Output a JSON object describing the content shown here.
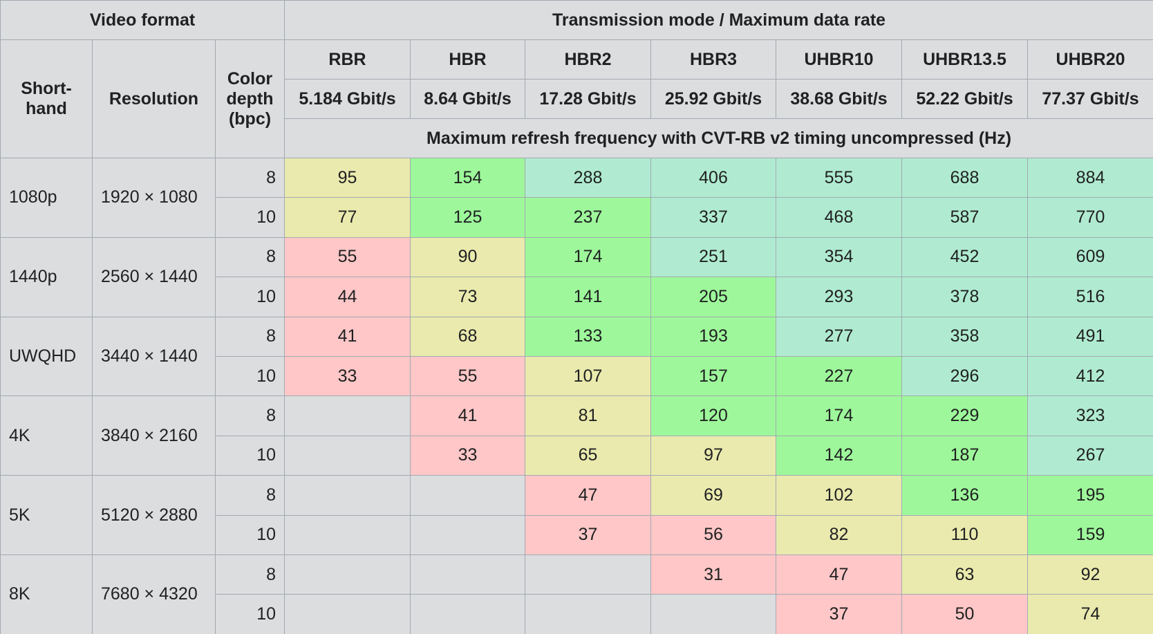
{
  "header": {
    "group_format": "Video format",
    "group_mode": "Transmission mode / Maximum data rate",
    "shorthand": "Short-hand",
    "resolution": "Resolution",
    "depth": "Color depth (bpc)",
    "subtitle": "Maximum refresh frequency with CVT-RB v2 timing uncompressed (Hz)",
    "modes": [
      {
        "name": "RBR",
        "rate": "5.184 Gbit/s"
      },
      {
        "name": "HBR",
        "rate": "8.64 Gbit/s"
      },
      {
        "name": "HBR2",
        "rate": "17.28 Gbit/s"
      },
      {
        "name": "HBR3",
        "rate": "25.92 Gbit/s"
      },
      {
        "name": "UHBR10",
        "rate": "38.68 Gbit/s"
      },
      {
        "name": "UHBR13.5",
        "rate": "52.22 Gbit/s"
      },
      {
        "name": "UHBR20",
        "rate": "77.37 Gbit/s"
      }
    ]
  },
  "formats": [
    {
      "shorthand": "1080p",
      "resolution": "1920 × 1080",
      "rows": [
        {
          "depth": 8,
          "values": [
            95,
            154,
            288,
            406,
            555,
            688,
            884
          ],
          "colors": [
            "#eaeaae",
            "#9ef89b",
            "#b0ebd1",
            "#b0ebd1",
            "#b0ebd1",
            "#b0ebd1",
            "#b0ebd1"
          ]
        },
        {
          "depth": 10,
          "values": [
            77,
            125,
            237,
            337,
            468,
            587,
            770
          ],
          "colors": [
            "#eaeaae",
            "#9ef89b",
            "#9ef89b",
            "#b0ebd1",
            "#b0ebd1",
            "#b0ebd1",
            "#b0ebd1"
          ]
        }
      ]
    },
    {
      "shorthand": "1440p",
      "resolution": "2560 × 1440",
      "rows": [
        {
          "depth": 8,
          "values": [
            55,
            90,
            174,
            251,
            354,
            452,
            609
          ],
          "colors": [
            "#ffc7c7",
            "#eaeaae",
            "#9ef89b",
            "#b0ebd1",
            "#b0ebd1",
            "#b0ebd1",
            "#b0ebd1"
          ]
        },
        {
          "depth": 10,
          "values": [
            44,
            73,
            141,
            205,
            293,
            378,
            516
          ],
          "colors": [
            "#ffc7c7",
            "#eaeaae",
            "#9ef89b",
            "#9ef89b",
            "#b0ebd1",
            "#b0ebd1",
            "#b0ebd1"
          ]
        }
      ]
    },
    {
      "shorthand": "UWQHD",
      "resolution": "3440 × 1440",
      "rows": [
        {
          "depth": 8,
          "values": [
            41,
            68,
            133,
            193,
            277,
            358,
            491
          ],
          "colors": [
            "#ffc7c7",
            "#eaeaae",
            "#9ef89b",
            "#9ef89b",
            "#b0ebd1",
            "#b0ebd1",
            "#b0ebd1"
          ]
        },
        {
          "depth": 10,
          "values": [
            33,
            55,
            107,
            157,
            227,
            296,
            412
          ],
          "colors": [
            "#ffc7c7",
            "#ffc7c7",
            "#eaeaae",
            "#9ef89b",
            "#9ef89b",
            "#b0ebd1",
            "#b0ebd1"
          ]
        }
      ]
    },
    {
      "shorthand": "4K",
      "resolution": "3840 × 2160",
      "rows": [
        {
          "depth": 8,
          "values": [
            null,
            41,
            81,
            120,
            174,
            229,
            323
          ],
          "colors": [
            null,
            "#ffc7c7",
            "#eaeaae",
            "#9ef89b",
            "#9ef89b",
            "#9ef89b",
            "#b0ebd1"
          ]
        },
        {
          "depth": 10,
          "values": [
            null,
            33,
            65,
            97,
            142,
            187,
            267
          ],
          "colors": [
            null,
            "#ffc7c7",
            "#eaeaae",
            "#eaeaae",
            "#9ef89b",
            "#9ef89b",
            "#b0ebd1"
          ]
        }
      ]
    },
    {
      "shorthand": "5K",
      "resolution": "5120 × 2880",
      "rows": [
        {
          "depth": 8,
          "values": [
            null,
            null,
            47,
            69,
            102,
            136,
            195
          ],
          "colors": [
            null,
            null,
            "#ffc7c7",
            "#eaeaae",
            "#eaeaae",
            "#9ef89b",
            "#9ef89b"
          ]
        },
        {
          "depth": 10,
          "values": [
            null,
            null,
            37,
            56,
            82,
            110,
            159
          ],
          "colors": [
            null,
            null,
            "#ffc7c7",
            "#ffc7c7",
            "#eaeaae",
            "#eaeaae",
            "#9ef89b"
          ]
        }
      ]
    },
    {
      "shorthand": "8K",
      "resolution": "7680 × 4320",
      "rows": [
        {
          "depth": 8,
          "values": [
            null,
            null,
            null,
            31,
            47,
            63,
            92
          ],
          "colors": [
            null,
            null,
            null,
            "#ffc7c7",
            "#ffc7c7",
            "#eaeaae",
            "#eaeaae"
          ]
        },
        {
          "depth": 10,
          "values": [
            null,
            null,
            null,
            null,
            37,
            50,
            74
          ],
          "colors": [
            null,
            null,
            null,
            null,
            "#ffc7c7",
            "#ffc7c7",
            "#eaeaae"
          ]
        }
      ]
    }
  ]
}
